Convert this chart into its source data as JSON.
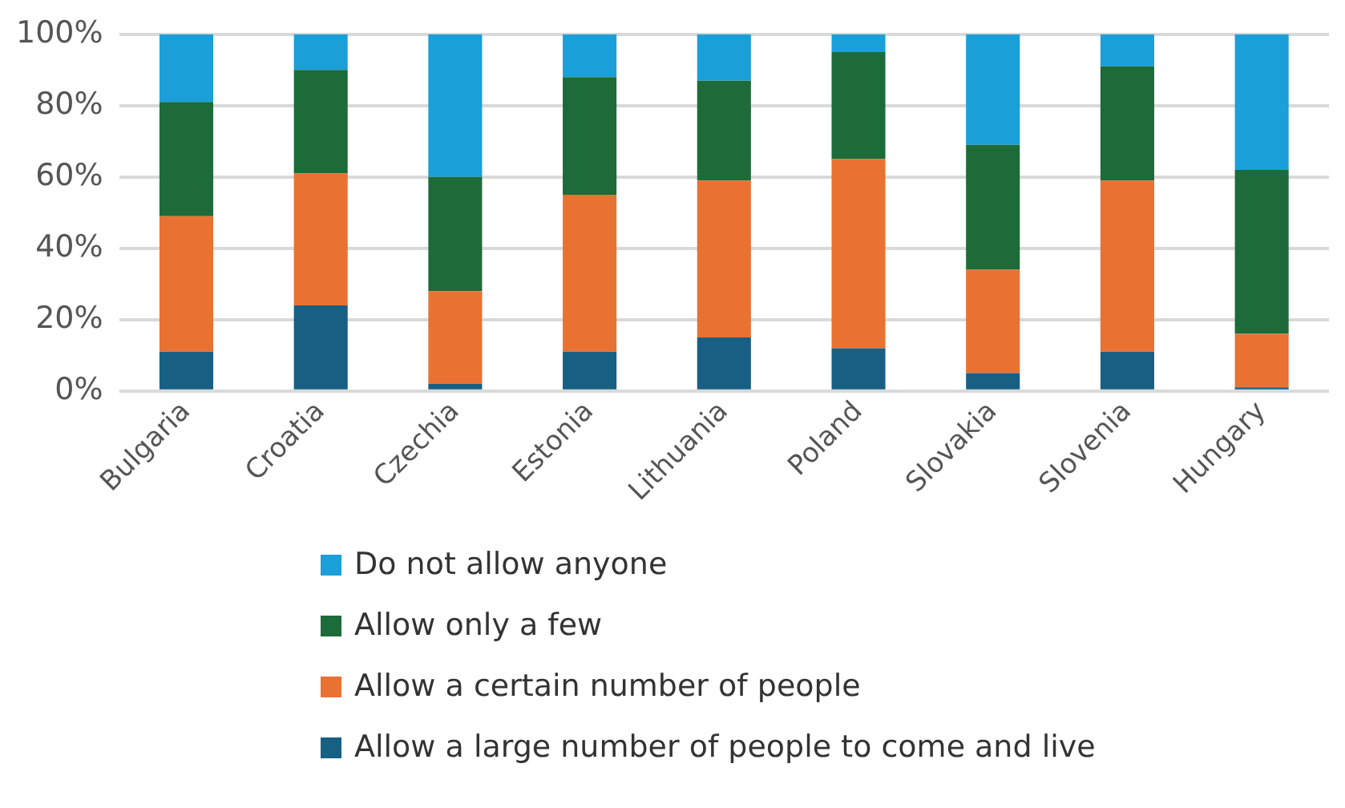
{
  "chart_data": {
    "type": "bar",
    "stacked": true,
    "categories": [
      "Bulgaria",
      "Croatia",
      "Czechia",
      "Estonia",
      "Lithuania",
      "Poland",
      "Slovakia",
      "Slovenia",
      "Hungary"
    ],
    "series": [
      {
        "name": "Allow a large number of people to come and live",
        "color": "#185f84",
        "values": [
          11,
          24,
          2,
          11,
          15,
          12,
          5,
          11,
          1
        ]
      },
      {
        "name": "Allow a certain number of people",
        "color": "#e97132",
        "values": [
          38,
          37,
          26,
          44,
          44,
          53,
          29,
          48,
          15
        ]
      },
      {
        "name": "Allow only a few",
        "color": "#1c6b38",
        "values": [
          32,
          29,
          32,
          33,
          28,
          30,
          35,
          32,
          46
        ]
      },
      {
        "name": "Do not allow anyone",
        "color": "#1a9fd9",
        "values": [
          19,
          10,
          40,
          12,
          13,
          5,
          31,
          9,
          38
        ]
      }
    ],
    "ylim": [
      0,
      100
    ],
    "yticks": [
      {
        "value": 0,
        "label": "0%"
      },
      {
        "value": 20,
        "label": "20%"
      },
      {
        "value": 40,
        "label": "40%"
      },
      {
        "value": 60,
        "label": "60%"
      },
      {
        "value": 80,
        "label": "80%"
      },
      {
        "value": 100,
        "label": "100%"
      }
    ],
    "grid": "y",
    "legend": "bottom"
  }
}
